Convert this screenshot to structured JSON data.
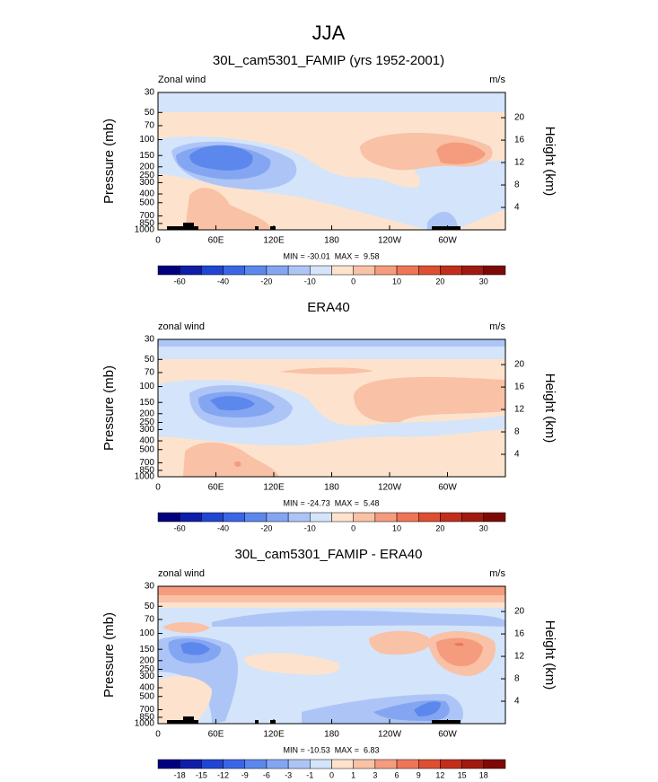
{
  "title": "JJA",
  "axes": {
    "ylabel": "Pressure (mb)",
    "y2label": "Height (km)",
    "ylim": [
      1000,
      30
    ],
    "ylog": true,
    "yticks": [
      30,
      50,
      70,
      100,
      150,
      200,
      250,
      300,
      400,
      500,
      700,
      850,
      1000
    ],
    "y2lim": [
      0,
      24.5
    ],
    "y2ticks": [
      20,
      16,
      12,
      8,
      4
    ],
    "xlim": [
      0,
      360
    ],
    "xticks": [
      0,
      {
        "value": 60,
        "label": "60E"
      },
      {
        "value": 120,
        "label": "120E"
      },
      180,
      {
        "value": 240,
        "label": "120W"
      },
      {
        "value": 300,
        "label": "60W"
      }
    ]
  },
  "colorbar_colors": [
    "#00007f",
    "#0e1ea8",
    "#2145d3",
    "#3a66e6",
    "#5c88ed",
    "#84a6f2",
    "#adc5f6",
    "#d4e4fa",
    "#fde3cd",
    "#f9c1a5",
    "#f59c7e",
    "#ee7656",
    "#dc4f33",
    "#c22e1c",
    "#a11a10",
    "#7d0a06"
  ],
  "panels": [
    {
      "title": "30L_cam5301_FAMIP (yrs 1952-2001)",
      "left_label": "Zonal wind",
      "right_label": "m/s",
      "stats": "MIN = -30.01  MAX =  9.58",
      "colorbar_labels": [
        -60,
        -40,
        -20,
        -10,
        0,
        10,
        20,
        30
      ]
    },
    {
      "title": "ERA40",
      "left_label": "zonal wind",
      "right_label": "m/s",
      "stats": "MIN = -24.73  MAX =  5.48",
      "colorbar_labels": [
        -60,
        -40,
        -20,
        -10,
        0,
        10,
        20,
        30
      ]
    },
    {
      "title": "30L_cam5301_FAMIP - ERA40",
      "left_label": "zonal wind",
      "right_label": "m/s",
      "stats": "MIN = -10.53  MAX =  6.83",
      "colorbar_labels": [
        -18,
        -15,
        -12,
        -9,
        -6,
        -3,
        -1,
        0,
        1,
        3,
        6,
        9,
        12,
        15,
        18
      ]
    }
  ]
}
